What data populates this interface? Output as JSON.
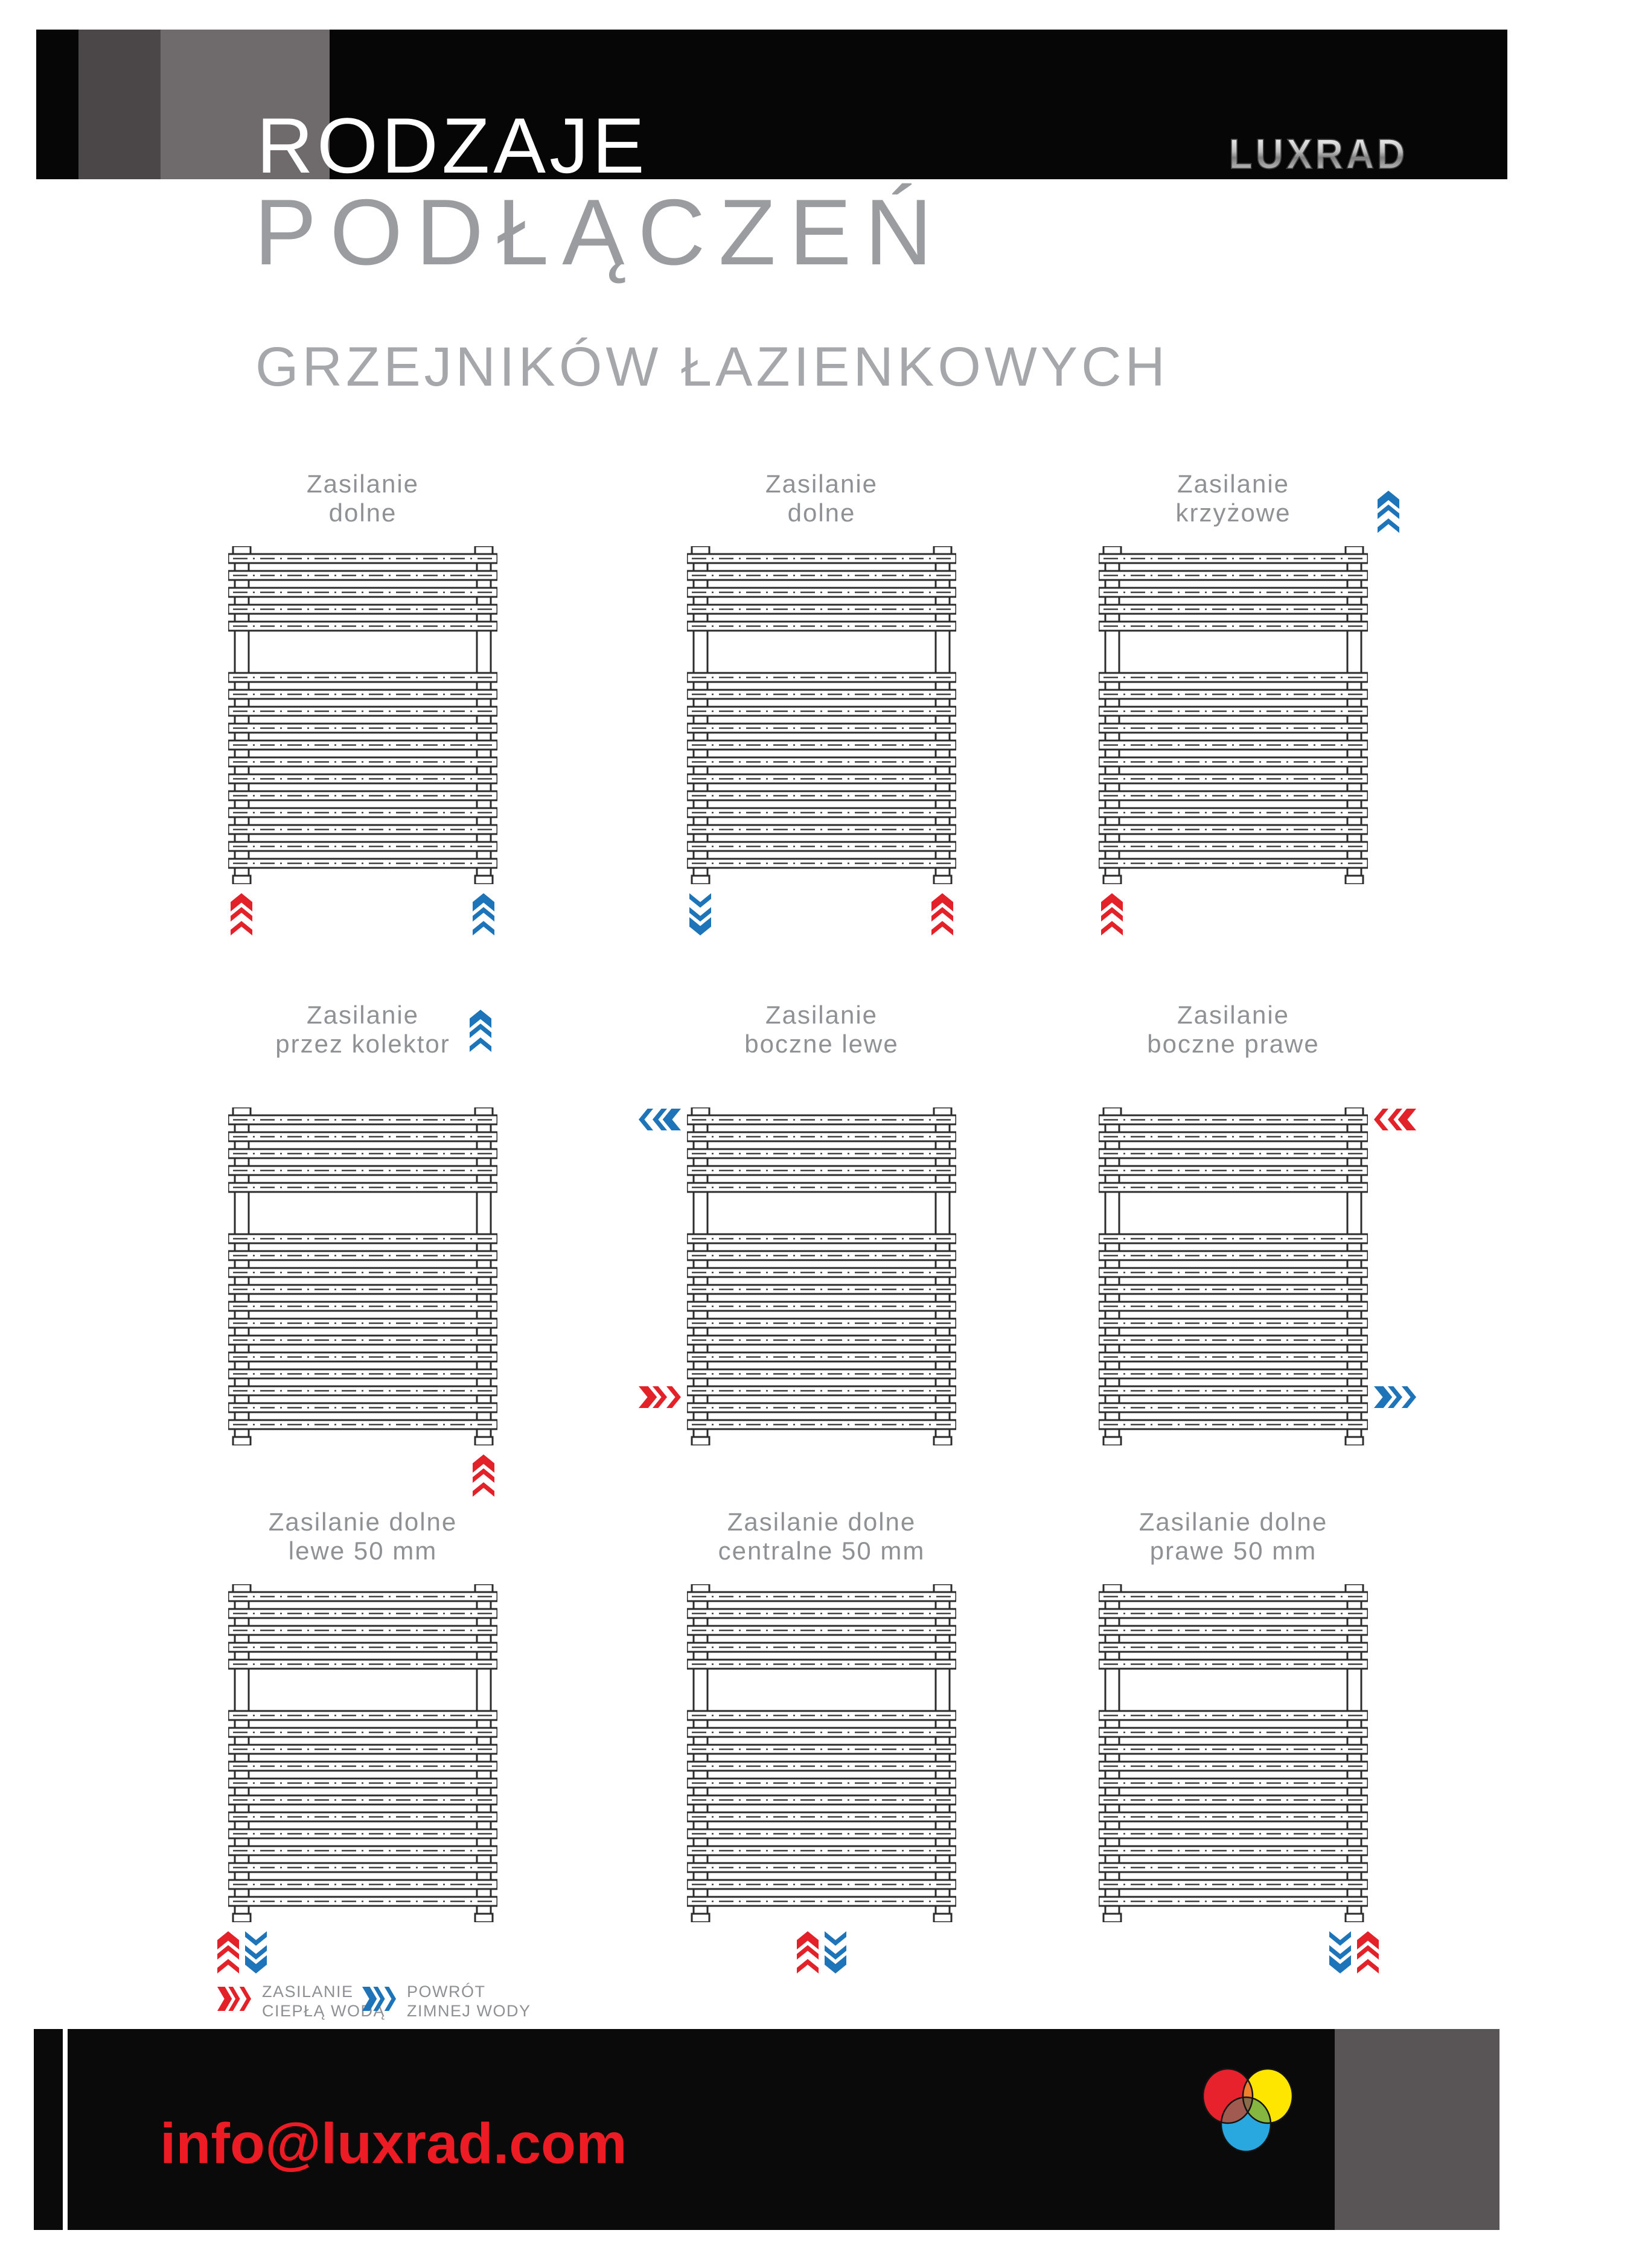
{
  "header": {
    "title_line1": "RODZAJE",
    "title_line2": "PODŁĄCZEŃ",
    "title_line3": "GRZEJNIKÓW ŁAZIENKOWYCH",
    "brand": "LUXRAD"
  },
  "colors": {
    "hot": "#E32129",
    "cold": "#1D74B8",
    "brand_red": "#ED1B24"
  },
  "cards": [
    {
      "label_line1": "Zasilanie",
      "label_line2": "dolne",
      "arrows": [
        {
          "dir": "up",
          "type": "hot",
          "slot": "bottom-left"
        },
        {
          "dir": "up",
          "type": "cold",
          "slot": "bottom-right"
        }
      ]
    },
    {
      "label_line1": "Zasilanie",
      "label_line2": "dolne",
      "arrows": [
        {
          "dir": "down",
          "type": "cold",
          "slot": "bottom-left"
        },
        {
          "dir": "up",
          "type": "hot",
          "slot": "bottom-right"
        }
      ]
    },
    {
      "label_line1": "Zasilanie",
      "label_line2": "krzyżowe",
      "arrows": [
        {
          "dir": "up",
          "type": "cold",
          "slot": "top-right"
        },
        {
          "dir": "up",
          "type": "hot",
          "slot": "bottom-left"
        }
      ]
    },
    {
      "label_line1": "Zasilanie",
      "label_line2": "przez kolektor",
      "arrows": [
        {
          "dir": "up",
          "type": "cold",
          "slot": "label-right"
        },
        {
          "dir": "up",
          "type": "hot",
          "slot": "bottom-right"
        }
      ]
    },
    {
      "label_line1": "Zasilanie",
      "label_line2": "boczne lewe",
      "arrows": [
        {
          "dir": "left",
          "type": "cold",
          "slot": "side-left-top"
        },
        {
          "dir": "right",
          "type": "hot",
          "slot": "side-left-bottom"
        }
      ]
    },
    {
      "label_line1": "Zasilanie",
      "label_line2": "boczne prawe",
      "arrows": [
        {
          "dir": "left",
          "type": "hot",
          "slot": "side-right-top"
        },
        {
          "dir": "right",
          "type": "cold",
          "slot": "side-right-bottom"
        }
      ]
    },
    {
      "label_line1": "Zasilanie dolne",
      "label_line2": "lewe 50 mm",
      "arrows": [
        {
          "dir": "up",
          "type": "hot",
          "slot": "pair-left-a"
        },
        {
          "dir": "down",
          "type": "cold",
          "slot": "pair-left-b"
        }
      ]
    },
    {
      "label_line1": "Zasilanie dolne",
      "label_line2": "centralne 50 mm",
      "arrows": [
        {
          "dir": "up",
          "type": "hot",
          "slot": "pair-center-a"
        },
        {
          "dir": "down",
          "type": "cold",
          "slot": "pair-center-b"
        }
      ]
    },
    {
      "label_line1": "Zasilanie dolne",
      "label_line2": "prawe 50 mm",
      "arrows": [
        {
          "dir": "down",
          "type": "cold",
          "slot": "pair-right-a"
        },
        {
          "dir": "up",
          "type": "hot",
          "slot": "pair-right-b"
        }
      ]
    }
  ],
  "legend": {
    "hot_line1": "ZASILANIE",
    "hot_line2": "CIEPŁĄ WODĄ",
    "cold_line1": "POWRÓT",
    "cold_line2": "ZIMNEJ WODY"
  },
  "footer": {
    "email": "info@luxrad.com"
  }
}
